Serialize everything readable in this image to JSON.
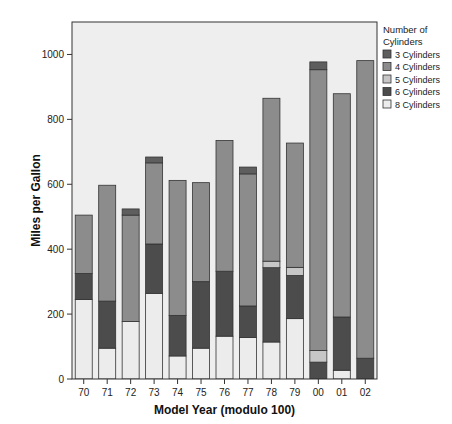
{
  "chart_data": {
    "type": "bar",
    "stacked": true,
    "x_label": "Model Year (modulo 100)",
    "y_label": "Miles per Gallon",
    "legend_title": "Number of Cylinders",
    "legend": "right",
    "grid": false,
    "categories": [
      "70",
      "71",
      "72",
      "73",
      "74",
      "75",
      "76",
      "77",
      "78",
      "79",
      "00",
      "01",
      "02"
    ],
    "series": [
      {
        "name": "3 Cylinders",
        "color": "#5e5e5e",
        "values": [
          0,
          0,
          19,
          18,
          0,
          0,
          0,
          21,
          0,
          0,
          24,
          0,
          0
        ]
      },
      {
        "name": "4 Cylinders",
        "color": "#8c8c8c",
        "values": [
          180,
          357,
          328,
          250,
          416,
          305,
          403,
          407,
          502,
          383,
          865,
          688,
          917
        ]
      },
      {
        "name": "5 Cylinders",
        "color": "#c6c6c6",
        "values": [
          0,
          0,
          0,
          0,
          0,
          0,
          0,
          0,
          20,
          25,
          36,
          0,
          0
        ]
      },
      {
        "name": "6 Cylinders",
        "color": "#4c4c4c",
        "values": [
          80,
          145,
          0,
          152,
          125,
          205,
          200,
          97,
          229,
          133,
          52,
          164,
          64
        ]
      },
      {
        "name": "8 Cylinders",
        "color": "#ececec",
        "values": [
          245,
          95,
          177,
          264,
          71,
          95,
          132,
          128,
          114,
          186,
          0,
          27,
          0
        ]
      }
    ],
    "ylim": [
      0,
      1100
    ],
    "yticks": [
      0,
      200,
      400,
      600,
      800,
      1000
    ]
  }
}
